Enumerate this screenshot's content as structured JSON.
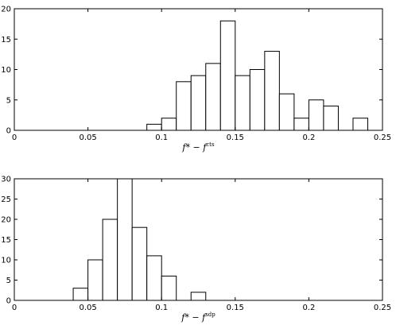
{
  "chart_data": [
    {
      "type": "bar",
      "title": "",
      "xlabel_main": "f* − f",
      "xlabel_sup": "cts",
      "ylabel": "",
      "xlim": [
        0,
        0.25
      ],
      "ylim": [
        0,
        20
      ],
      "xticks": [
        "0",
        "0.05",
        "0.1",
        "0.15",
        "0.2",
        "0.25"
      ],
      "yticks": [
        "0",
        "5",
        "10",
        "15",
        "20"
      ],
      "bin_width": 0.01,
      "bins": [
        {
          "x": 0.095,
          "value": 1
        },
        {
          "x": 0.105,
          "value": 2
        },
        {
          "x": 0.115,
          "value": 8
        },
        {
          "x": 0.125,
          "value": 9
        },
        {
          "x": 0.135,
          "value": 11
        },
        {
          "x": 0.145,
          "value": 18
        },
        {
          "x": 0.155,
          "value": 9
        },
        {
          "x": 0.165,
          "value": 10
        },
        {
          "x": 0.175,
          "value": 13
        },
        {
          "x": 0.185,
          "value": 6
        },
        {
          "x": 0.195,
          "value": 2
        },
        {
          "x": 0.205,
          "value": 5
        },
        {
          "x": 0.215,
          "value": 4
        },
        {
          "x": 0.235,
          "value": 2
        }
      ]
    },
    {
      "type": "bar",
      "title": "",
      "xlabel_main": "f* − f",
      "xlabel_sup": "sdp",
      "ylabel": "",
      "xlim": [
        0,
        0.25
      ],
      "ylim": [
        0,
        30
      ],
      "xticks": [
        "0",
        "0.05",
        "0.1",
        "0.15",
        "0.2",
        "0.25"
      ],
      "yticks": [
        "0",
        "5",
        "10",
        "15",
        "20",
        "25",
        "30"
      ],
      "bin_width": 0.01,
      "bins": [
        {
          "x": 0.045,
          "value": 3
        },
        {
          "x": 0.055,
          "value": 10
        },
        {
          "x": 0.065,
          "value": 20
        },
        {
          "x": 0.075,
          "value": 30
        },
        {
          "x": 0.085,
          "value": 18
        },
        {
          "x": 0.095,
          "value": 11
        },
        {
          "x": 0.105,
          "value": 6
        },
        {
          "x": 0.125,
          "value": 2
        }
      ]
    }
  ]
}
